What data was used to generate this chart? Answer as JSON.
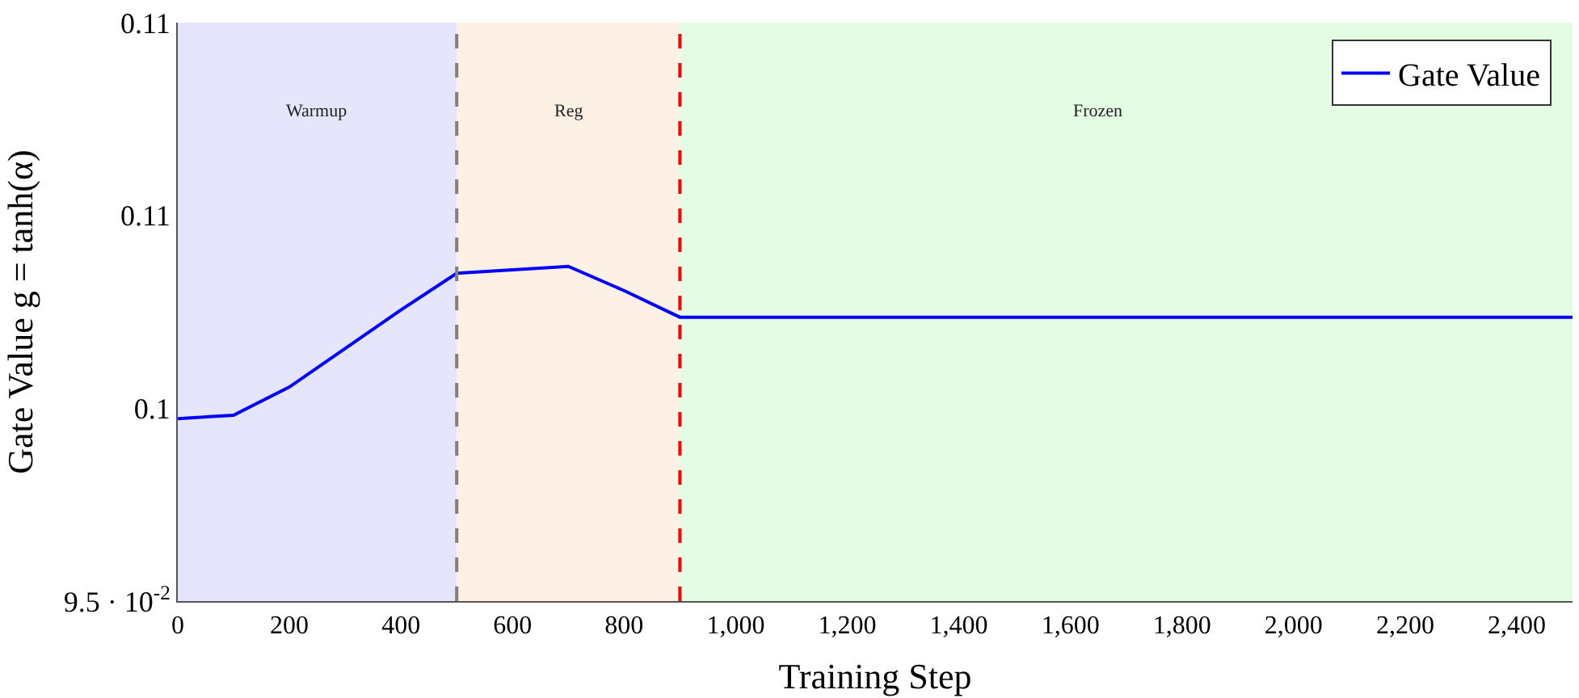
{
  "chart_data": {
    "type": "line",
    "xlabel": "Training Step",
    "ylabel": "Gate Value g = tanh(α)",
    "x": [
      0,
      100,
      200,
      300,
      400,
      500,
      700,
      800,
      900,
      2500
    ],
    "series": [
      {
        "name": "Gate Value",
        "color": "#0000ff",
        "values": [
          0.09973,
          0.09982,
          0.10055,
          0.10155,
          0.10255,
          0.1035,
          0.10368,
          0.10305,
          0.10236,
          0.10236
        ]
      }
    ],
    "xlim": [
      0,
      2500
    ],
    "xticks": [
      0,
      200,
      400,
      600,
      800,
      {
        "value": 1000,
        "label": "1,000"
      },
      {
        "value": 1200,
        "label": "1,200"
      },
      {
        "value": 1400,
        "label": "1,400"
      },
      {
        "value": 1600,
        "label": "1,600"
      },
      {
        "value": 1800,
        "label": "1,800"
      },
      {
        "value": 2000,
        "label": "2,000"
      },
      {
        "value": 2200,
        "label": "2,200"
      },
      {
        "value": 2400,
        "label": "2,400"
      }
    ],
    "ylim": [
      0.095,
      0.11
    ],
    "yticks": [
      {
        "value": 0.095,
        "label": "9.5 · 10$^{-2}$"
      },
      0.1,
      {
        "value": 0.105,
        "label": "0.11"
      },
      0.11
    ],
    "bands": [
      {
        "axis": "x",
        "from": 0,
        "to": 500,
        "label": "Warmup",
        "color": "#e5e5fb"
      },
      {
        "axis": "x",
        "from": 500,
        "to": 900,
        "label": "Reg",
        "color": "#fdf0e4"
      },
      {
        "axis": "x",
        "from": 900,
        "to": 2500,
        "label": "Frozen",
        "color": "#e4fbe4"
      }
    ],
    "ref_lines": [
      {
        "axis": "x",
        "value": 500,
        "color": "#808080",
        "line_style": "dashed"
      },
      {
        "axis": "x",
        "value": 900,
        "color": "#ff0000",
        "line_style": "dashed"
      }
    ],
    "legend": "top right",
    "grid": false,
    "marker": "none",
    "line_style": "solid"
  }
}
